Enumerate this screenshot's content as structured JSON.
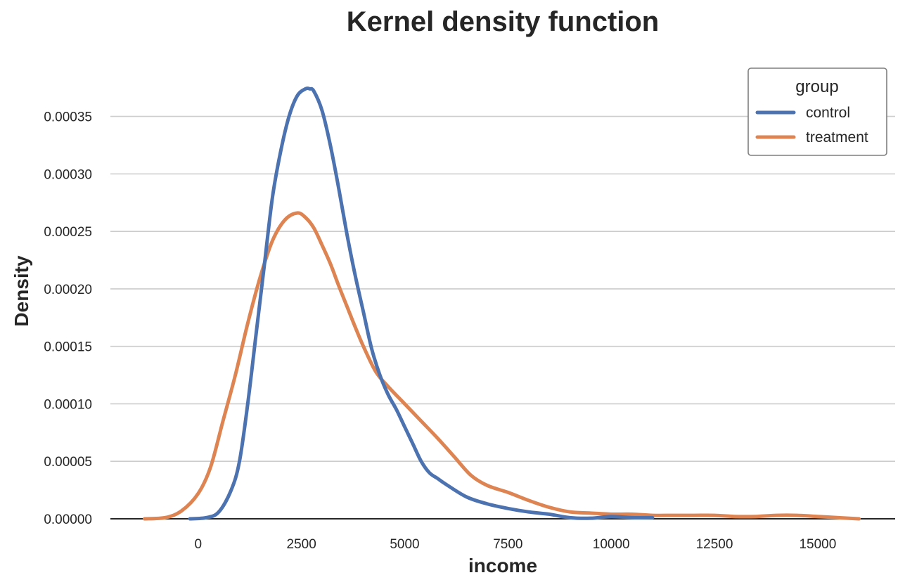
{
  "chart_data": {
    "type": "line",
    "title": "Kernel density function",
    "xlabel": "income",
    "ylabel": "Density",
    "xlim": [
      -2125,
      16875
    ],
    "ylim": [
      0,
      0.000395
    ],
    "x_ticks": [
      {
        "value": 0,
        "label": "0"
      },
      {
        "value": 2500,
        "label": "2500"
      },
      {
        "value": 5000,
        "label": "5000"
      },
      {
        "value": 7500,
        "label": "7500"
      },
      {
        "value": 10000,
        "label": "10000"
      },
      {
        "value": 12500,
        "label": "12500"
      },
      {
        "value": 15000,
        "label": "15000"
      }
    ],
    "y_ticks": [
      {
        "value": 0,
        "label": "0.00000"
      },
      {
        "value": 5e-05,
        "label": "0.00005"
      },
      {
        "value": 0.0001,
        "label": "0.00010"
      },
      {
        "value": 0.00015,
        "label": "0.00015"
      },
      {
        "value": 0.0002,
        "label": "0.00020"
      },
      {
        "value": 0.00025,
        "label": "0.00025"
      },
      {
        "value": 0.0003,
        "label": "0.00030"
      },
      {
        "value": 0.00035,
        "label": "0.00035"
      }
    ],
    "grid": "horizontal",
    "legend": {
      "title": "group",
      "placement": "top-right"
    },
    "series": [
      {
        "name": "control",
        "color": "#4c72b0",
        "x": [
          -200,
          200,
          500,
          800,
          1000,
          1200,
          1400,
          1600,
          1800,
          2000,
          2200,
          2400,
          2600,
          2700,
          2800,
          3000,
          3200,
          3400,
          3600,
          3800,
          4000,
          4200,
          4400,
          4600,
          4800,
          5000,
          5200,
          5400,
          5600,
          5800,
          6000,
          6500,
          7000,
          7500,
          8000,
          8500,
          9000,
          9500,
          10000,
          10500,
          11000
        ],
        "y": [
          0,
          1e-06,
          6e-06,
          2.5e-05,
          5e-05,
          0.0001,
          0.00016,
          0.00022,
          0.00028,
          0.00032,
          0.00035,
          0.000368,
          0.000374,
          0.000374,
          0.000372,
          0.000355,
          0.000325,
          0.000288,
          0.000248,
          0.000212,
          0.00018,
          0.000148,
          0.000125,
          0.000108,
          9.5e-05,
          8e-05,
          6.5e-05,
          5e-05,
          4e-05,
          3.5e-05,
          3e-05,
          1.9e-05,
          1.3e-05,
          9e-06,
          6e-06,
          4e-06,
          1e-06,
          5e-07,
          2e-06,
          1e-06,
          1e-06
        ]
      },
      {
        "name": "treatment",
        "color": "#dd8452",
        "x": [
          -1300,
          -800,
          -400,
          0,
          300,
          600,
          900,
          1200,
          1500,
          1800,
          2100,
          2400,
          2600,
          2800,
          3000,
          3200,
          3400,
          3600,
          3800,
          4000,
          4300,
          4600,
          5000,
          5400,
          5800,
          6200,
          6600,
          7000,
          7500,
          8000,
          8500,
          9000,
          9500,
          10000,
          10500,
          11000,
          11500,
          12000,
          12500,
          13000,
          13500,
          14000,
          14500,
          15000,
          15500,
          16000
        ],
        "y": [
          0,
          1e-06,
          7e-06,
          2.2e-05,
          4.5e-05,
          8.5e-05,
          0.000125,
          0.00017,
          0.00021,
          0.000242,
          0.00026,
          0.000266,
          0.000262,
          0.000253,
          0.000238,
          0.000222,
          0.000203,
          0.000185,
          0.000167,
          0.00015,
          0.000128,
          0.000115,
          0.0001,
          8.5e-05,
          7e-05,
          5.4e-05,
          3.8e-05,
          2.9e-05,
          2.3e-05,
          1.6e-05,
          1e-05,
          6e-06,
          5e-06,
          4e-06,
          4e-06,
          3e-06,
          3e-06,
          3e-06,
          3e-06,
          2e-06,
          2e-06,
          3e-06,
          3e-06,
          2e-06,
          1e-06,
          0
        ]
      }
    ]
  }
}
